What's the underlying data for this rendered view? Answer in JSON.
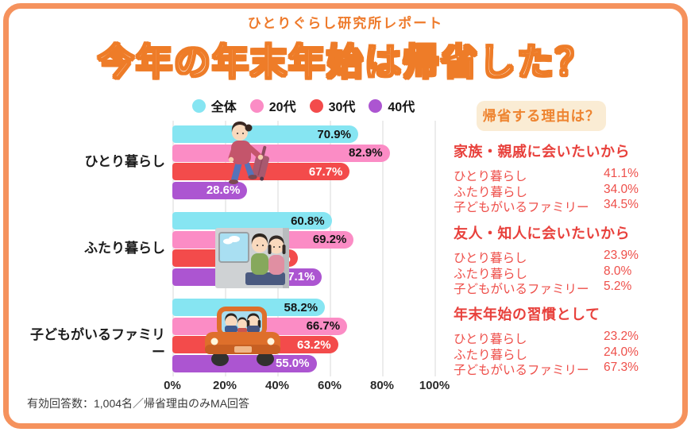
{
  "poster": {
    "report_label": "ひとりぐらし研究所レポート",
    "title": "今年の年末年始は帰省した？",
    "footnote": "有効回答数：1,004名／帰省理由のみMA回答"
  },
  "colors": {
    "frame_orange": "#f5925d",
    "title_orange": "#ee7c28",
    "badge_background": "#faecd4",
    "badge_text_orange": "#ee8430",
    "reason_red": "#e8413c",
    "grid_gray": "#ececec"
  },
  "chart_data": {
    "type": "bar",
    "orientation": "horizontal",
    "title": "今年の年末年始は帰省した？",
    "categories": [
      "ひとり暮らし",
      "ふたり暮らし",
      "子どもがいるファミリー"
    ],
    "series": [
      {
        "name": "全体",
        "color": "#86e5f2",
        "value_label_color": "#141414",
        "values": [
          70.9,
          60.8,
          58.2
        ]
      },
      {
        "name": "20代",
        "color": "#fb8cc5",
        "value_label_color": "#141414",
        "values": [
          82.9,
          69.2,
          66.7
        ]
      },
      {
        "name": "30代",
        "color": "#f34b4b",
        "value_label_color": "#ffffff",
        "values": [
          67.7,
          47.8,
          63.2
        ]
      },
      {
        "name": "40代",
        "color": "#ac55d1",
        "value_label_color": "#ffffff",
        "values": [
          28.6,
          57.1,
          55.0
        ]
      }
    ],
    "x_ticks": [
      "0%",
      "20%",
      "40%",
      "60%",
      "80%",
      "100%"
    ],
    "xlim": [
      0,
      100
    ],
    "grid": true,
    "legend_position": "top-center",
    "value_suffix": "%"
  },
  "illustrations": [
    "woman-with-suitcase",
    "couple-on-train",
    "family-in-car"
  ],
  "reasons": {
    "badge_label": "帰省する理由は？",
    "sections": [
      {
        "heading": "家族・親戚に会いたいから",
        "rows": [
          {
            "label": "ひとり暮らし",
            "value": "41.1%"
          },
          {
            "label": "ふたり暮らし",
            "value": "34.0%"
          },
          {
            "label": "子どもがいるファミリー",
            "value": "34.5%"
          }
        ]
      },
      {
        "heading": "友人・知人に会いたいから",
        "rows": [
          {
            "label": "ひとり暮らし",
            "value": "23.9%"
          },
          {
            "label": "ふたり暮らし",
            "value": "8.0%"
          },
          {
            "label": "子どもがいるファミリー",
            "value": "5.2%"
          }
        ]
      },
      {
        "heading": "年末年始の習慣として",
        "rows": [
          {
            "label": "ひとり暮らし",
            "value": "23.2%"
          },
          {
            "label": "ふたり暮らし",
            "value": "24.0%"
          },
          {
            "label": "子どもがいるファミリー",
            "value": "67.3%"
          }
        ]
      }
    ]
  }
}
